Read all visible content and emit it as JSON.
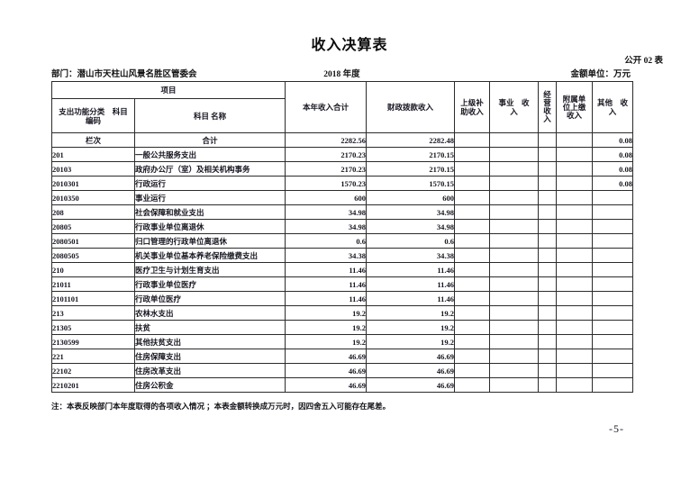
{
  "title": "收入决算表",
  "doc_no": "公开 02 表",
  "department": "部门：潜山市天柱山风景名胜区管委会",
  "year": "2018 年度",
  "unit": "金额单位：万元",
  "note": "注：本表反映部门本年度取得的各项收入情况 ；本表金额转换成万元时，因四舍五入可能存在尾差。",
  "page_number": "-5-",
  "table": {
    "header": {
      "project": "项目",
      "code": "支出功能分类　科目\n编码",
      "name": "科目 名称",
      "total": "本年收入合计",
      "fiscal": "财政拨款收入",
      "superior": "上级补\n助收入",
      "business": "事业　收\n入",
      "operating": "经\n营\n收\n入",
      "affiliated": "附属单\n位上缴\n收入",
      "other": "其他　收\n入"
    },
    "rows": [
      {
        "code": "栏次",
        "name": "合计",
        "center": true,
        "indent": 0,
        "total": "2282.56",
        "fiscal": "2282.48",
        "superior": "",
        "business": "",
        "operating": "",
        "affiliated": "",
        "other": "0.08"
      },
      {
        "code": "201",
        "name": "一般公共服务支出",
        "indent": 0,
        "total": "2170.23",
        "fiscal": "2170.15",
        "superior": "",
        "business": "",
        "operating": "",
        "affiliated": "",
        "other": "0.08"
      },
      {
        "code": "20103",
        "name": "政府办公厅（室）及相关机构事务",
        "indent": 0,
        "total": "2170.23",
        "fiscal": "2170.15",
        "superior": "",
        "business": "",
        "operating": "",
        "affiliated": "",
        "other": "0.08"
      },
      {
        "code": "2010301",
        "name": "行政运行",
        "indent": 1,
        "total": "1570.23",
        "fiscal": "1570.15",
        "superior": "",
        "business": "",
        "operating": "",
        "affiliated": "",
        "other": "0.08"
      },
      {
        "code": "2010350",
        "name": "事业运行",
        "indent": 1,
        "total": "600",
        "fiscal": "600",
        "superior": "",
        "business": "",
        "operating": "",
        "affiliated": "",
        "other": ""
      },
      {
        "code": "208",
        "name": "社会保障和就业支出",
        "indent": 0,
        "total": "34.98",
        "fiscal": "34.98",
        "superior": "",
        "business": "",
        "operating": "",
        "affiliated": "",
        "other": ""
      },
      {
        "code": "20805",
        "name": "行政事业单位离退休",
        "indent": 0,
        "total": "34.98",
        "fiscal": "34.98",
        "superior": "",
        "business": "",
        "operating": "",
        "affiliated": "",
        "other": ""
      },
      {
        "code": "2080501",
        "name": "归口管理的行政单位离退休",
        "indent": 1,
        "total": "0.6",
        "fiscal": "0.6",
        "superior": "",
        "business": "",
        "operating": "",
        "affiliated": "",
        "other": ""
      },
      {
        "code": "2080505",
        "name": "机关事业单位基本养老保险缴费支出",
        "indent": 1,
        "total": "34.38",
        "fiscal": "34.38",
        "superior": "",
        "business": "",
        "operating": "",
        "affiliated": "",
        "other": ""
      },
      {
        "code": "210",
        "name": "医疗卫生与计划生育支出",
        "indent": 0,
        "total": "11.46",
        "fiscal": "11.46",
        "superior": "",
        "business": "",
        "operating": "",
        "affiliated": "",
        "other": ""
      },
      {
        "code": "21011",
        "name": "行政事业单位医疗",
        "indent": 0,
        "total": "11.46",
        "fiscal": "11.46",
        "superior": "",
        "business": "",
        "operating": "",
        "affiliated": "",
        "other": ""
      },
      {
        "code": "2101101",
        "name": "行政单位医疗",
        "indent": 1,
        "total": "11.46",
        "fiscal": "11.46",
        "superior": "",
        "business": "",
        "operating": "",
        "affiliated": "",
        "other": ""
      },
      {
        "code": "213",
        "name": "农林水支出",
        "indent": 0,
        "total": "19.2",
        "fiscal": "19.2",
        "superior": "",
        "business": "",
        "operating": "",
        "affiliated": "",
        "other": ""
      },
      {
        "code": "21305",
        "name": "扶贫",
        "indent": 0,
        "total": "19.2",
        "fiscal": "19.2",
        "superior": "",
        "business": "",
        "operating": "",
        "affiliated": "",
        "other": ""
      },
      {
        "code": "2130599",
        "name": "其他扶贫支出",
        "indent": 1,
        "total": "19.2",
        "fiscal": "19.2",
        "superior": "",
        "business": "",
        "operating": "",
        "affiliated": "",
        "other": ""
      },
      {
        "code": "221",
        "name": "住房保障支出",
        "indent": 0,
        "total": "46.69",
        "fiscal": "46.69",
        "superior": "",
        "business": "",
        "operating": "",
        "affiliated": "",
        "other": ""
      },
      {
        "code": "22102",
        "name": "住房改革支出",
        "indent": 0,
        "total": "46.69",
        "fiscal": "46.69",
        "superior": "",
        "business": "",
        "operating": "",
        "affiliated": "",
        "other": ""
      },
      {
        "code": "2210201",
        "name": "住房公积金",
        "indent": 1,
        "total": "46.69",
        "fiscal": "46.69",
        "superior": "",
        "business": "",
        "operating": "",
        "affiliated": "",
        "other": ""
      }
    ]
  }
}
